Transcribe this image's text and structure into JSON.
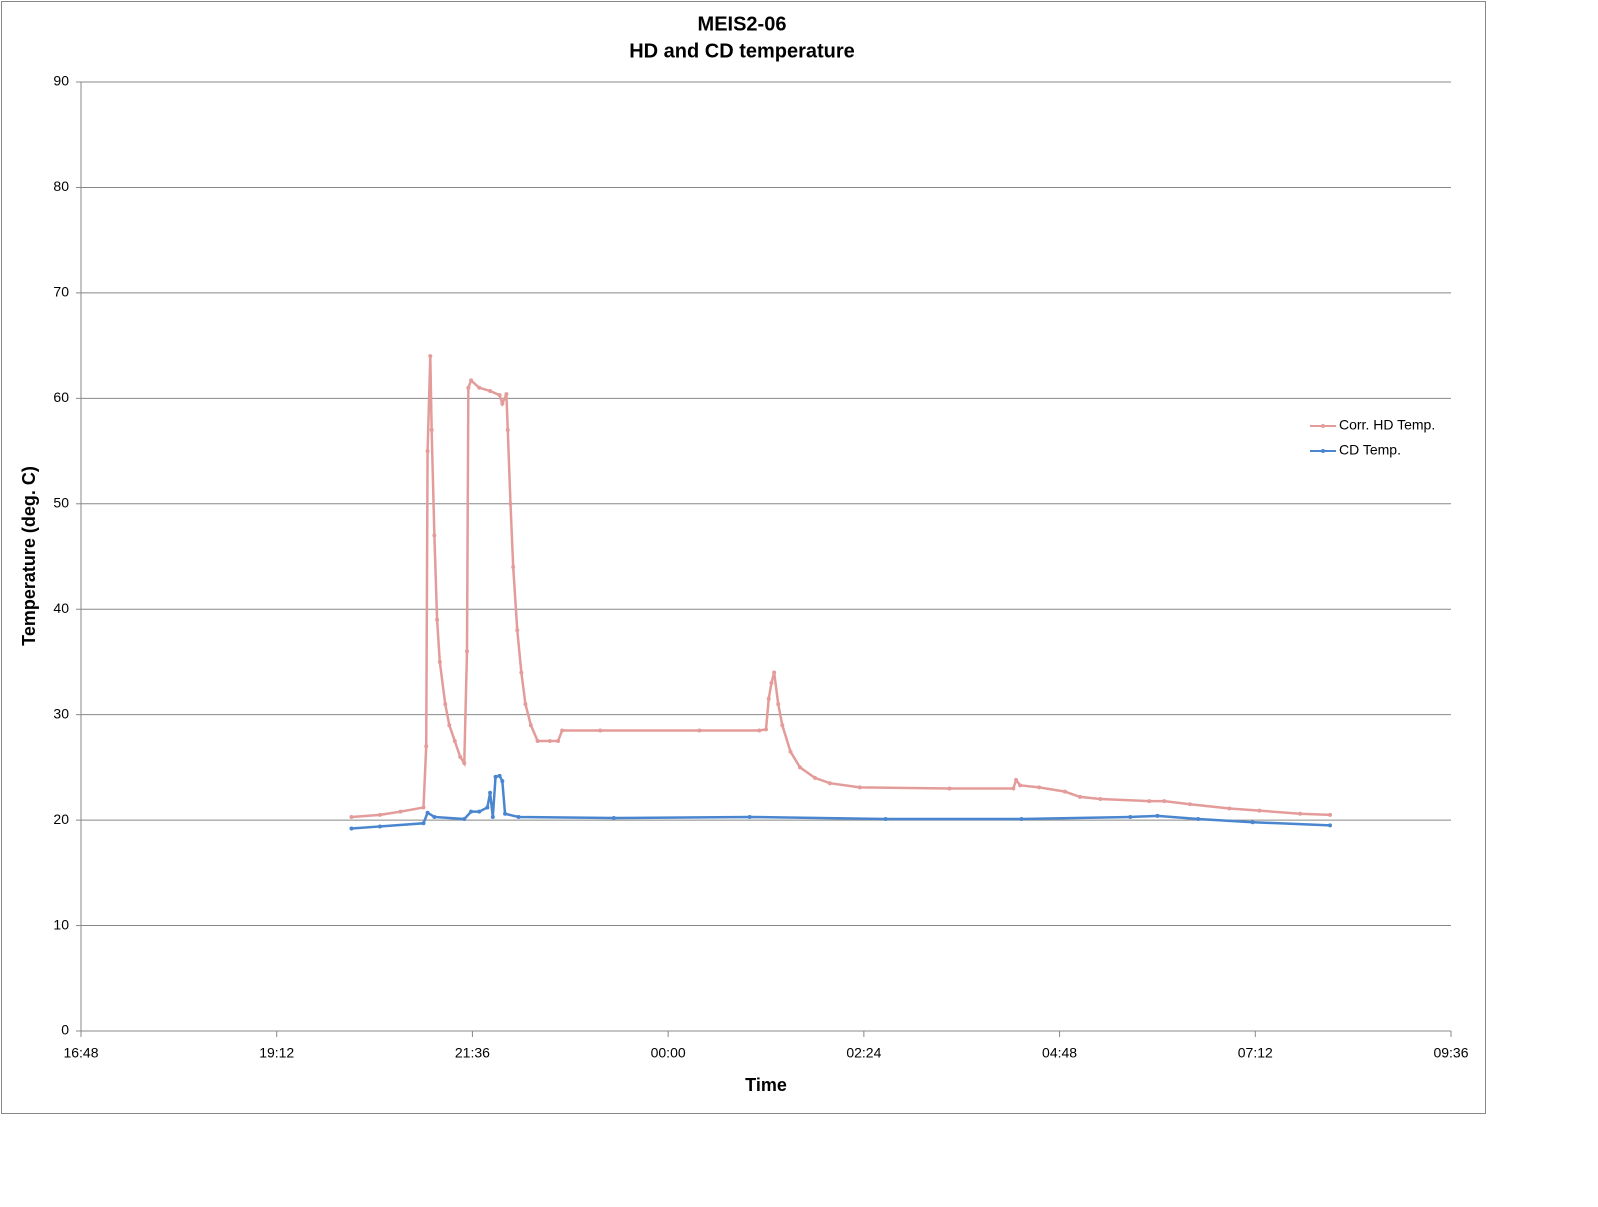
{
  "chart_data": {
    "type": "line",
    "title": "MEIS2-06",
    "subtitle": "HD and CD temperature",
    "x_label": "Time",
    "y_label": "Temperature (deg. C)",
    "xlim": [
      1008,
      2016
    ],
    "xticks": [
      {
        "value": 1008,
        "label": "16:48"
      },
      {
        "value": 1152,
        "label": "19:12"
      },
      {
        "value": 1296,
        "label": "21:36"
      },
      {
        "value": 1440,
        "label": "00:00"
      },
      {
        "value": 1584,
        "label": "02:24"
      },
      {
        "value": 1728,
        "label": "04:48"
      },
      {
        "value": 1872,
        "label": "07:12"
      },
      {
        "value": 2016,
        "label": "09:36"
      }
    ],
    "ylim": [
      0,
      90
    ],
    "yticks": [
      0,
      10,
      20,
      30,
      40,
      50,
      60,
      70,
      80,
      90
    ],
    "grid": true,
    "legend": "right",
    "series": [
      {
        "name": "Corr. HD Temp.",
        "color": "#e39c9a",
        "x": [
          1207,
          1228,
          1243,
          1260,
          1262,
          1263,
          1265,
          1266,
          1268,
          1270,
          1272,
          1276,
          1279,
          1283,
          1287,
          1290,
          1292,
          1293,
          1295,
          1301,
          1309,
          1316,
          1318,
          1321,
          1322,
          1324,
          1326,
          1329,
          1332,
          1335,
          1339,
          1344,
          1353,
          1359,
          1362,
          1390,
          1463,
          1507,
          1512,
          1514,
          1516,
          1518,
          1521,
          1524,
          1530,
          1537,
          1548,
          1559,
          1581,
          1647,
          1694,
          1696,
          1699,
          1713,
          1732,
          1743,
          1758,
          1794,
          1805,
          1824,
          1853,
          1875,
          1905,
          1927
        ],
        "values": [
          20.3,
          20.5,
          20.8,
          21.2,
          27,
          55,
          64,
          57,
          47,
          39,
          35,
          31,
          29,
          27.5,
          26,
          25.4,
          36,
          61,
          61.7,
          61,
          60.7,
          60.3,
          59.5,
          60.4,
          57,
          50,
          44,
          38,
          34,
          31,
          29,
          27.5,
          27.5,
          27.5,
          28.5,
          28.5,
          28.5,
          28.5,
          28.6,
          31.5,
          33,
          34,
          31,
          29,
          26.5,
          25,
          24,
          23.5,
          23.1,
          23,
          23,
          23.8,
          23.3,
          23.1,
          22.7,
          22.2,
          22,
          21.8,
          21.8,
          21.5,
          21.1,
          20.9,
          20.6,
          20.5
        ]
      },
      {
        "name": "CD Temp.",
        "color": "#4a86cf",
        "x": [
          1207,
          1228,
          1260,
          1263,
          1268,
          1290,
          1295,
          1301,
          1307,
          1309,
          1311,
          1313,
          1316,
          1318,
          1320,
          1330,
          1400,
          1500,
          1600,
          1700,
          1780,
          1800,
          1830,
          1870,
          1927
        ],
        "values": [
          19.2,
          19.4,
          19.7,
          20.7,
          20.3,
          20.1,
          20.8,
          20.8,
          21.2,
          22.6,
          20.3,
          24.1,
          24.2,
          23.7,
          20.6,
          20.3,
          20.2,
          20.3,
          20.1,
          20.1,
          20.3,
          20.4,
          20.1,
          19.8,
          19.5
        ]
      }
    ]
  }
}
